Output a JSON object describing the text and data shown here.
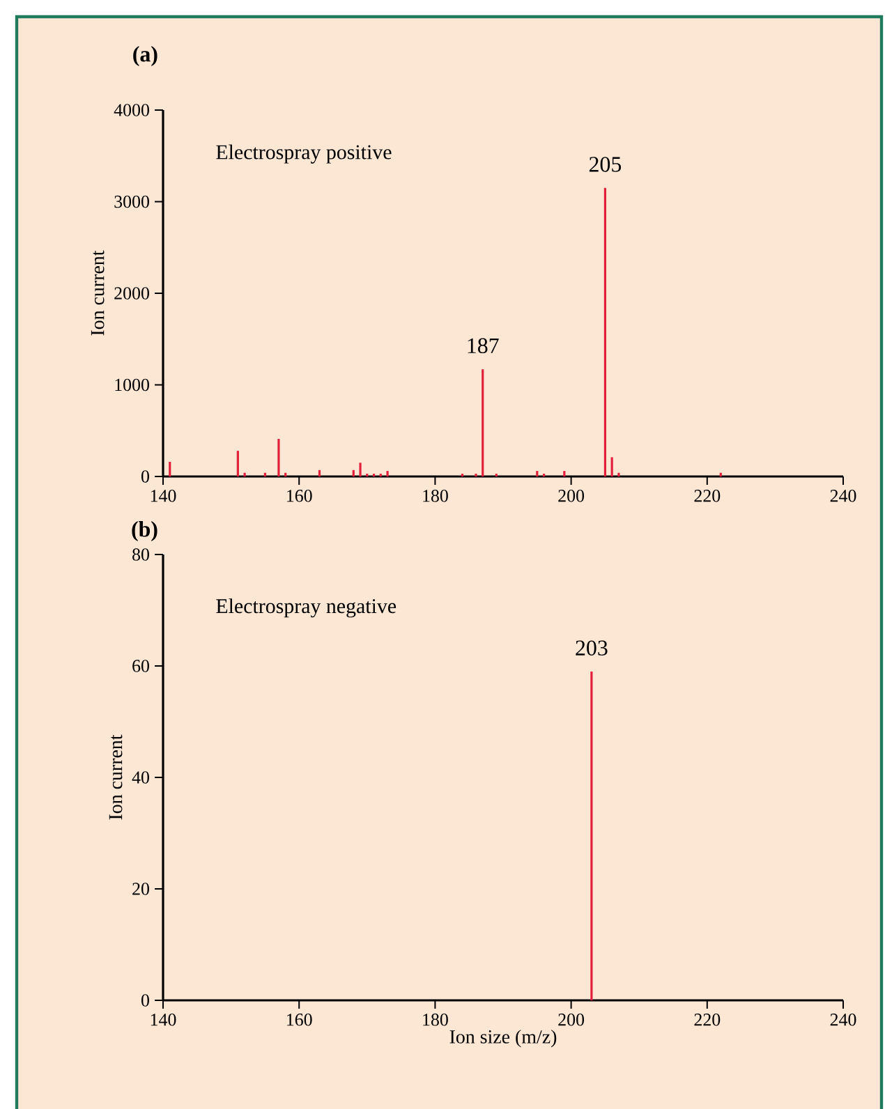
{
  "chart_data": [
    {
      "type": "bar",
      "title": "(a)",
      "ylabel": "Ion current",
      "color": "#e2203c",
      "x": [
        141,
        151,
        152,
        155,
        157,
        158,
        163,
        168,
        169,
        170,
        171,
        172,
        173,
        184,
        186,
        187,
        189,
        195,
        196,
        199,
        205,
        206,
        207,
        222
      ],
      "values": [
        160,
        280,
        40,
        40,
        410,
        40,
        70,
        70,
        150,
        30,
        30,
        30,
        60,
        30,
        30,
        1170,
        30,
        60,
        30,
        60,
        3150,
        210,
        40,
        40
      ],
      "xlim": [
        140,
        240
      ],
      "ylim": [
        0,
        4000
      ],
      "xticks": [
        140,
        160,
        180,
        200,
        220,
        240
      ],
      "yticks": [
        0,
        1000,
        2000,
        3000,
        4000
      ],
      "annotations": [
        "Electrospray positive",
        {
          "text": "187",
          "x": 187,
          "y": 1170
        },
        {
          "text": "205",
          "x": 205,
          "y": 3150
        }
      ]
    },
    {
      "type": "bar",
      "title": "(b)",
      "xlabel": "Ion size (m/z)",
      "ylabel": "Ion current",
      "color": "#e2203c",
      "x": [
        203
      ],
      "values": [
        59
      ],
      "xlim": [
        140,
        240
      ],
      "ylim": [
        0,
        80
      ],
      "xticks": [
        140,
        160,
        180,
        200,
        220,
        240
      ],
      "yticks": [
        0,
        20,
        40,
        60,
        80
      ],
      "annotations": [
        "Electrospray negative",
        {
          "text": "203",
          "x": 203,
          "y": 59
        }
      ]
    }
  ]
}
